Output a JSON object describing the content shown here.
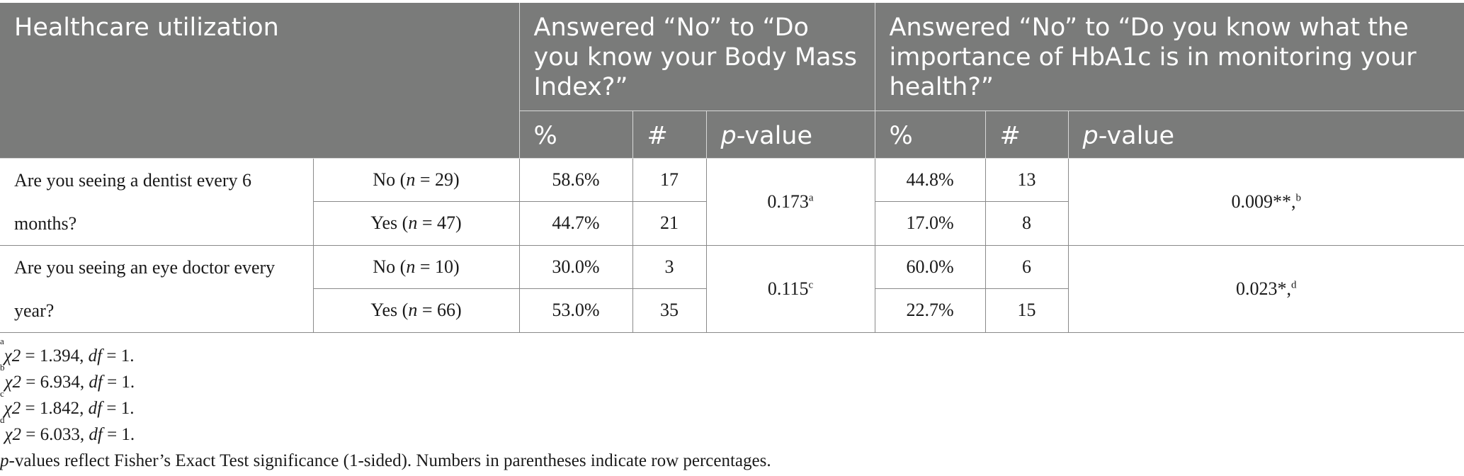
{
  "header": {
    "utilization": "Healthcare utilization",
    "bmi_question": "Answered “No” to “Do you know your Body Mass Index?”",
    "hba1c_question": "Answered “No” to “Do you know what the importance of HbA1c is in monitoring your health?”",
    "pct": "%",
    "count": "#",
    "p_italic": "p",
    "p_suffix": "-value"
  },
  "rows": [
    {
      "question": "Are you seeing a dentist every 6 months?",
      "groups": [
        {
          "label": "No",
          "n_italic": "n",
          "n_value": " = 29)",
          "bmi_pct": "58.6%",
          "bmi_count": "17",
          "hb_pct": "44.8%",
          "hb_count": "13"
        },
        {
          "label": "Yes",
          "n_italic": "n",
          "n_value": " = 47)",
          "bmi_pct": "44.7%",
          "bmi_count": "21",
          "hb_pct": "17.0%",
          "hb_count": "8"
        }
      ],
      "bmi_p": "0.173",
      "bmi_p_sup": "a",
      "hb_p": "0.009**,",
      "hb_p_sup": "b"
    },
    {
      "question": "Are you seeing an eye doctor every year?",
      "groups": [
        {
          "label": "No",
          "n_italic": "n",
          "n_value": " = 10)",
          "bmi_pct": "30.0%",
          "bmi_count": "3",
          "hb_pct": "60.0%",
          "hb_count": "6"
        },
        {
          "label": "Yes",
          "n_italic": "n",
          "n_value": " = 66)",
          "bmi_pct": "53.0%",
          "bmi_count": "35",
          "hb_pct": "22.7%",
          "hb_count": "15"
        }
      ],
      "bmi_p": "0.115",
      "bmi_p_sup": "c",
      "hb_p": "0.023*,",
      "hb_p_sup": "d"
    }
  ],
  "footnotes": [
    {
      "mark": "a",
      "stat": "χ2",
      "value": " = 1.394, ",
      "df": "df",
      "df_value": " = 1."
    },
    {
      "mark": "b",
      "stat": "χ2",
      "value": " = 6.934, ",
      "df": "df",
      "df_value": " = 1."
    },
    {
      "mark": "c",
      "stat": "χ2",
      "value": " = 1.842, ",
      "df": "df",
      "df_value": " = 1."
    },
    {
      "mark": "d",
      "stat": "χ2",
      "value": " = 6.033, ",
      "df": "df",
      "df_value": " = 1."
    }
  ],
  "note": {
    "p_italic": "p",
    "text": "-values reflect Fisher’s Exact Test significance (1-sided). Numbers in parentheses indicate row percentages."
  }
}
